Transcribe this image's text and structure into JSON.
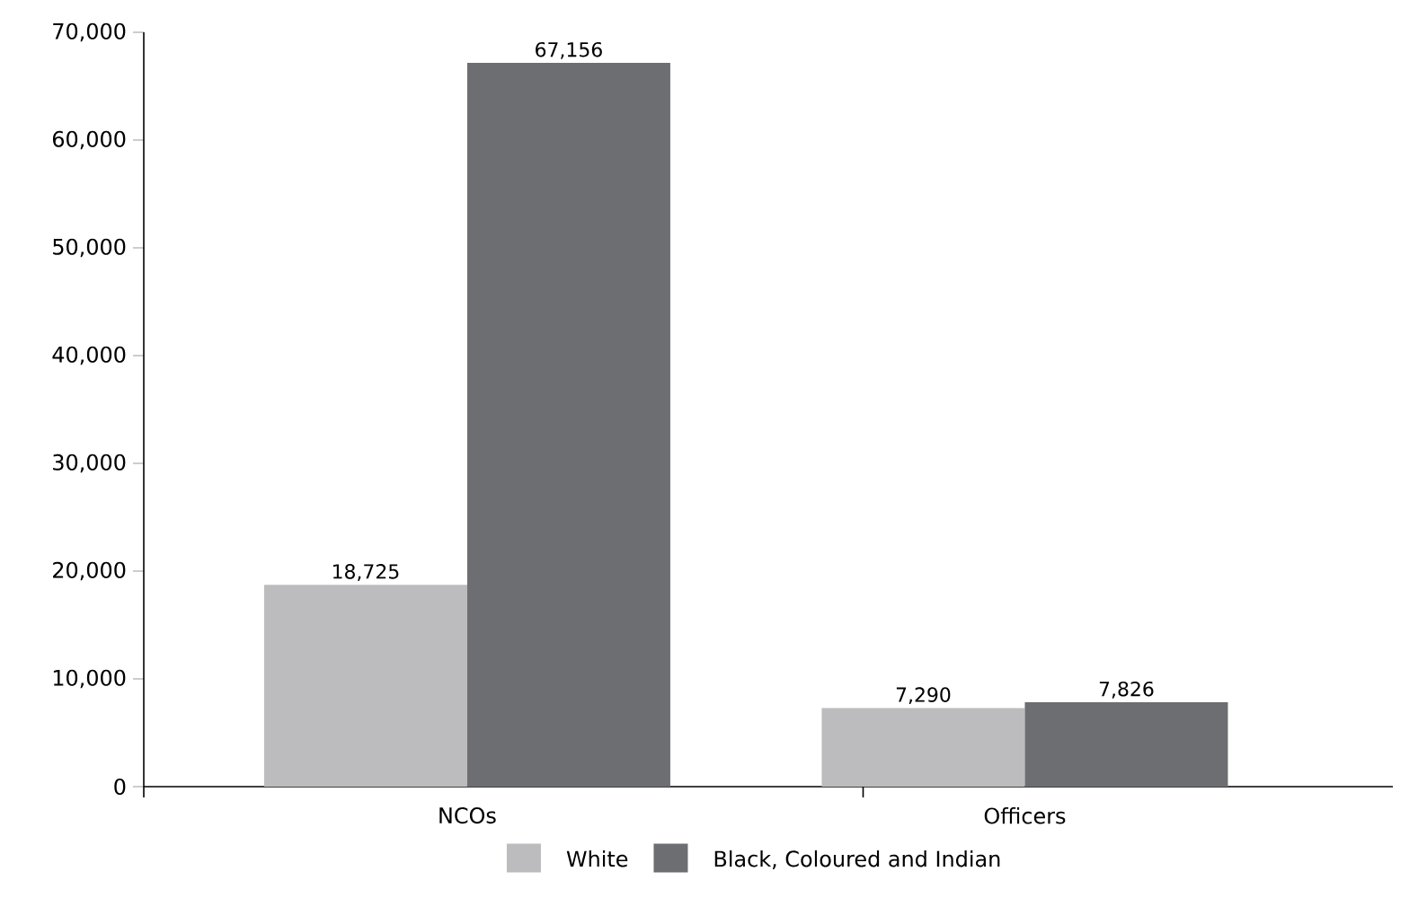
{
  "chart_data": {
    "type": "bar",
    "categories": [
      "NCOs",
      "Officers"
    ],
    "series": [
      {
        "name": "White",
        "color": "#bcbcbe",
        "values": [
          18725,
          7290
        ],
        "value_labels": [
          "18,725",
          "7,290"
        ]
      },
      {
        "name": "Black, Coloured and Indian",
        "color": "#6d6e71",
        "values": [
          67156,
          7826
        ],
        "value_labels": [
          "67,156",
          "7,826"
        ]
      }
    ],
    "ylim": [
      0,
      70000
    ],
    "yticks": [
      0,
      {
        "value": 10000,
        "label": "10,000"
      },
      {
        "value": 20000,
        "label": "20,000"
      },
      {
        "value": 30000,
        "label": "30,000"
      },
      {
        "value": 40000,
        "label": "40,000"
      },
      {
        "value": 50000,
        "label": "50,000"
      },
      {
        "value": 60000,
        "label": "60,000"
      },
      {
        "value": 70000,
        "label": "70,000"
      }
    ],
    "legend": "bottom",
    "grid": false
  }
}
